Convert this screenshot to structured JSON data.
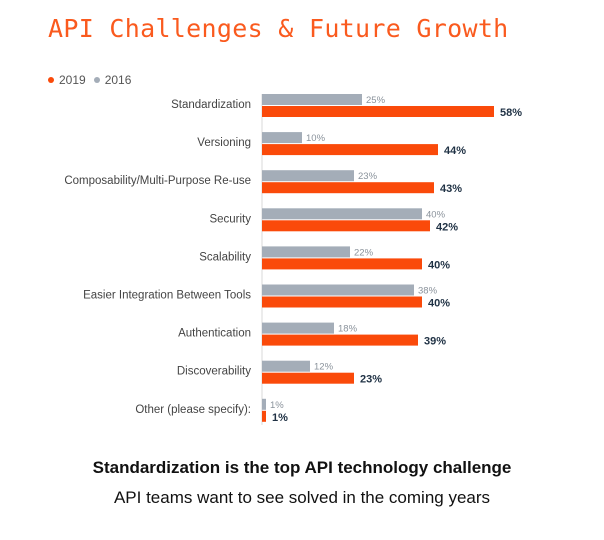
{
  "title": "API Challenges & Future Growth",
  "caption": {
    "headline": "Standardization is the top API technology challenge",
    "subline": "API teams want to see solved in the coming years"
  },
  "colors": {
    "title": "#fa5a1e",
    "series_2019": "#fa4a0a",
    "series_2016": "#a4adb8",
    "label_2019": "#1f3144",
    "label_2016": "#8a929b",
    "category_text": "#444444"
  },
  "chart_data": {
    "type": "bar",
    "orientation": "horizontal",
    "title": "API Challenges & Future Growth",
    "legend": [
      {
        "label": "2019",
        "color": "#fa4a0a"
      },
      {
        "label": "2016",
        "color": "#a4adb8"
      }
    ],
    "legend_position": "top-left",
    "categories": [
      "Standardization",
      "Versioning",
      "Composability/Multi-Purpose Re-use",
      "Security",
      "Scalability",
      "Easier Integration Between Tools",
      "Authentication",
      "Discoverability",
      "Other (please specify):"
    ],
    "series": [
      {
        "name": "2016",
        "values": [
          25,
          10,
          23,
          40,
          22,
          38,
          18,
          12,
          1
        ],
        "labels": [
          "25%",
          "10%",
          "23%",
          "40%",
          "22%",
          "38%",
          "18%",
          "12%",
          "1%"
        ]
      },
      {
        "name": "2019",
        "values": [
          58,
          44,
          43,
          42,
          40,
          40,
          39,
          23,
          1
        ],
        "labels": [
          "58%",
          "44%",
          "43%",
          "42%",
          "40%",
          "40%",
          "39%",
          "23%",
          "1%"
        ]
      }
    ],
    "value_unit": "%",
    "xlim": [
      0,
      60
    ],
    "grid": false
  }
}
